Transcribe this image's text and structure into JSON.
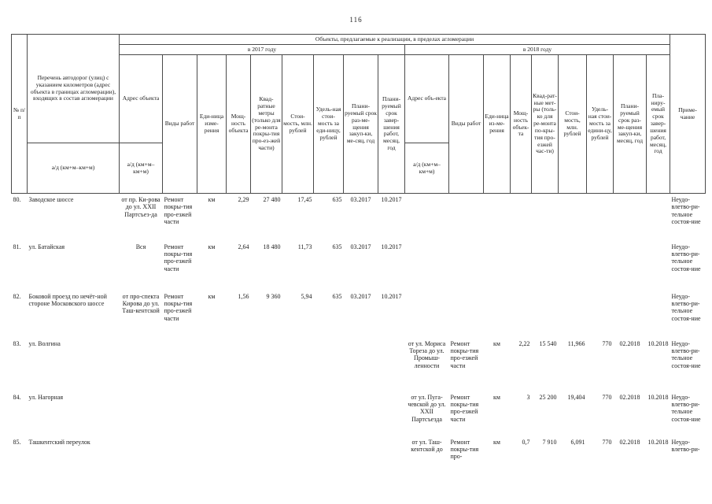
{
  "page": {
    "number": "116"
  },
  "table": {
    "header": {
      "num": "№ п/п",
      "roads": "Перечень автодорог (улиц) с указанием километров (адрес объекта в границах агломерации), входящих в состав агломерации",
      "roads_sub": "а/д (км+м–км+м)",
      "objects": "Объекты, предлагаемые к реализации, в пределах агломерации",
      "y2017": "в 2017 году",
      "y2018": "в 2018 году",
      "note": "Приме-чание",
      "cols2017": {
        "address": "Адрес объекта",
        "address_sub": "а/д (км+м–км+м)",
        "works": "Виды работ",
        "unit": "Еди-ница изме-рения",
        "capacity": "Мощ-ность объекта",
        "sqm": "Квад-ратные метры (только для ре-монта покры-тия про-ез-жей части)",
        "cost": "Стои-мость, млн. рублей",
        "unit_cost": "Удель-ная стои-мость за еди-ницу, рублей",
        "procurement": "Плани-руемый срок раз-ме-щения закуп-ки, ме-сяц, год",
        "completion": "Плани-руемый срок завер-шения работ, месяц, год"
      },
      "cols2018": {
        "address": "Адрес объ-екта",
        "address_sub": "а/д (км+м–км+м)",
        "works": "Виды работ",
        "unit": "Еди-ница из-ме-рения",
        "capacity": "Мощ-ность объек-та",
        "sqm": "Квад-рат-ные мет-ры (толь-ко для ре-монта по-кры-тия про-езжей час-ти)",
        "cost": "Стои-мость, млн. рублей",
        "unit_cost": "Удель-ная стои-мость за едини-цу, рублей",
        "procurement": "Плани-руемый срок раз-ме-щения закуп-ки, месяц, год",
        "completion": "Пла-ниру-емый срок завер-шения работ, месяц, год"
      }
    },
    "rows": [
      {
        "cells": [
          "80.",
          "Заводское шоссе",
          "от пр. Ки-рова до ул. XXII Партсъез-да",
          "Ремонт покры-тия про-езжей части",
          "км",
          "2,29",
          "27 480",
          "17,45",
          "635",
          "03.2017",
          "10.2017",
          "",
          "",
          "",
          "",
          "",
          "",
          "",
          "",
          "",
          "Неудо-влетво-ри-тельное состоя-ние"
        ]
      },
      {
        "cells": [
          "81.",
          "ул. Батайская",
          "Вся",
          "Ремонт покры-тия про-езжей части",
          "км",
          "2,64",
          "18 480",
          "11,73",
          "635",
          "03.2017",
          "10.2017",
          "",
          "",
          "",
          "",
          "",
          "",
          "",
          "",
          "",
          "Неудо-влетво-ри-тельное состоя-ние"
        ]
      },
      {
        "cells": [
          "82.",
          "Боковой проезд по нечёт-ной стороне Московского шоссе",
          "от про-спекта Кирова до ул. Таш-кентской",
          "Ремонт покры-тия про-езжей части",
          "км",
          "1,56",
          "9 360",
          "5,94",
          "635",
          "03.2017",
          "10.2017",
          "",
          "",
          "",
          "",
          "",
          "",
          "",
          "",
          "",
          "Неудо-влетво-ри-тельное состоя-ние"
        ]
      },
      {
        "cells": [
          "83.",
          "ул. Волгина",
          "",
          "",
          "",
          "",
          "",
          "",
          "",
          "",
          "",
          "от ул. Мориса Тореза до ул. Промыш-ленности",
          "Ремонт покры-тия про-езжей части",
          "км",
          "2,22",
          "15 540",
          "11,966",
          "770",
          "02.2018",
          "10.2018",
          "Неудо-влетво-ри-тельное состоя-ние"
        ]
      },
      {
        "cells": [
          "84.",
          "ул. Нагорная",
          "",
          "",
          "",
          "",
          "",
          "",
          "",
          "",
          "",
          "от ул. Пуга-чевской до ул. XXII Партсъезда",
          "Ремонт покры-тия про-езжей части",
          "км",
          "3",
          "25 200",
          "19,404",
          "770",
          "02.2018",
          "10.2018",
          "Неудо-влетво-ри-тельное состоя-ние"
        ]
      },
      {
        "cells": [
          "85.",
          "Ташкентский переулок",
          "",
          "",
          "",
          "",
          "",
          "",
          "",
          "",
          "",
          "от ул. Таш-кентской до",
          "Ремонт покры-тия про-",
          "км",
          "0,7",
          "7 910",
          "6,091",
          "770",
          "02.2018",
          "10.2018",
          "Неудо-влетво-ри-"
        ]
      }
    ]
  }
}
